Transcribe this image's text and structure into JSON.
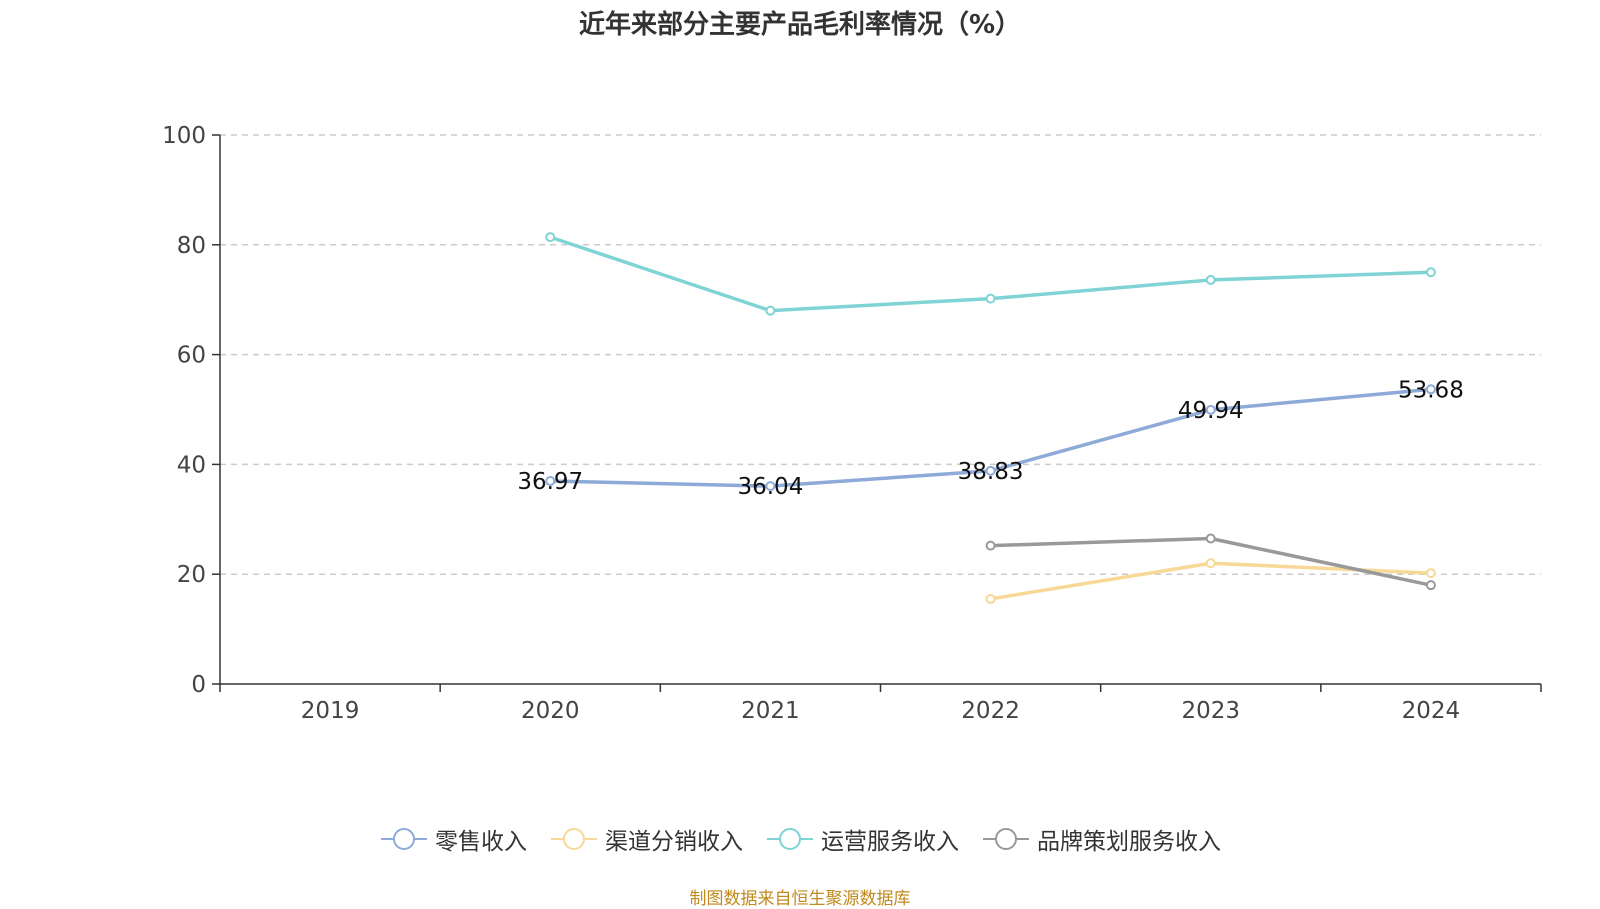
{
  "chart_data": {
    "type": "line",
    "title": "近年来部分主要产品毛利率情况（%）",
    "categories": [
      "2019",
      "2020",
      "2021",
      "2022",
      "2023",
      "2024"
    ],
    "ylim": [
      0,
      100
    ],
    "yticks": [
      0,
      20,
      40,
      60,
      80,
      100
    ],
    "grid": true,
    "legend_position": "bottom",
    "series": [
      {
        "name": "零售收入",
        "color": "#8eaad8",
        "values": [
          null,
          36.97,
          36.04,
          38.83,
          49.94,
          53.68
        ],
        "show_labels": true
      },
      {
        "name": "渠道分销收入",
        "color": "#f8d896",
        "values": [
          null,
          null,
          null,
          15.5,
          22.0,
          20.2
        ],
        "show_labels": false
      },
      {
        "name": "运营服务收入",
        "color": "#80d3d5",
        "values": [
          null,
          81.4,
          68.0,
          70.2,
          73.6,
          75.0
        ],
        "show_labels": false
      },
      {
        "name": "品牌策划服务收入",
        "color": "#999999",
        "values": [
          null,
          null,
          null,
          25.2,
          26.5,
          18.0
        ],
        "show_labels": false
      }
    ]
  },
  "source_note": "制图数据来自恒生聚源数据库"
}
